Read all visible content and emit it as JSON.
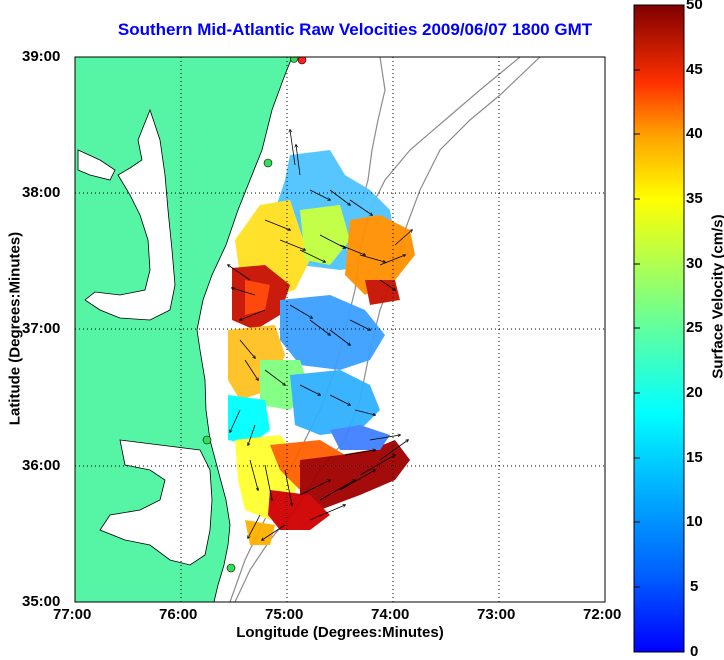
{
  "title": "Southern Mid-Atlantic Raw Velocities 2009/06/07 1800 GMT",
  "xlabel": "Longitude (Degrees:Minutes)",
  "ylabel": "Latitude (Degrees:Minutes)",
  "xticks": [
    "77:00",
    "76:00",
    "75:00",
    "74:00",
    "73:00",
    "72:00"
  ],
  "yticks": [
    "39:00",
    "38:00",
    "37:00",
    "36:00",
    "35:00"
  ],
  "colorbar": {
    "label": "Surface Velocity (cm/s)",
    "ticks": [
      "0",
      "5",
      "10",
      "15",
      "20",
      "25",
      "30",
      "35",
      "40",
      "45",
      "50"
    ],
    "min": 0,
    "max": 50
  },
  "colors": {
    "land": "#55f5a5",
    "title": "#0000ff",
    "bathymetry": "#8c8c8c"
  },
  "map": {
    "lon_range": [
      -77,
      -72
    ],
    "lat_range": [
      35,
      39
    ],
    "grid": true
  }
}
